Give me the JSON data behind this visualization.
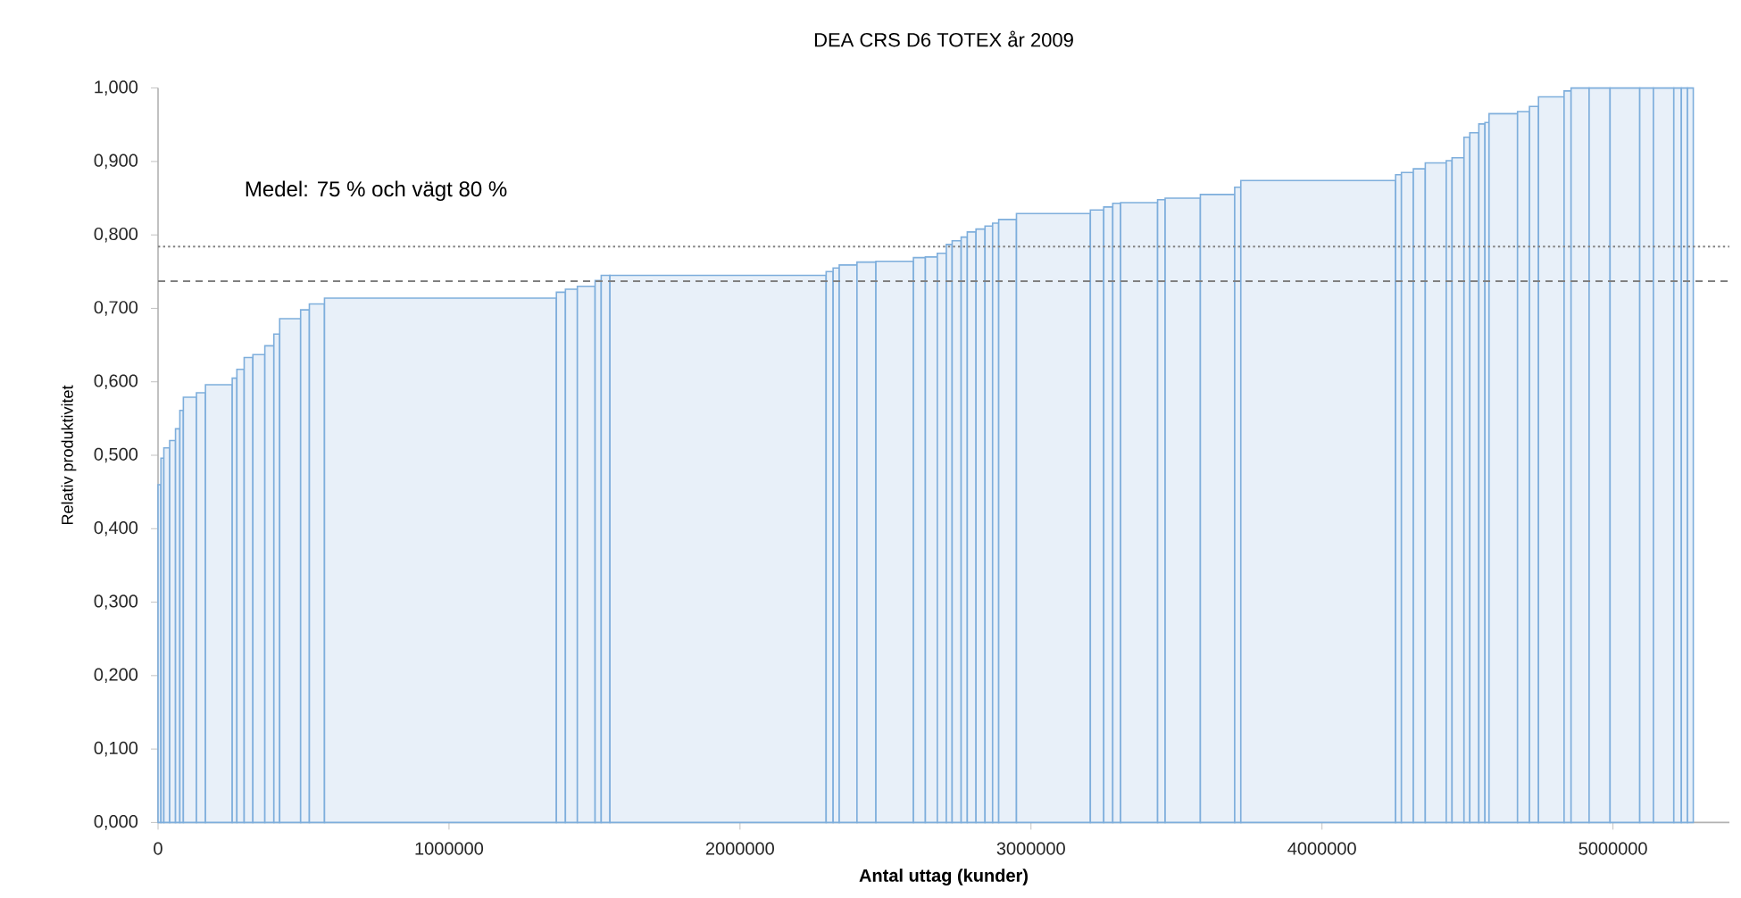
{
  "chart_data": {
    "type": "histogram",
    "title": "DEA CRS D6 TOTEX år 2009",
    "xlabel": "Antal uttag (kunder)",
    "ylabel": "Relativ produktivitet",
    "annotations": [
      "Medel: 75 % och vägt 80 %"
    ],
    "bins": [
      0,
      10000,
      20000,
      40000,
      60000,
      75000,
      87000,
      132000,
      163000,
      255000,
      271000,
      296000,
      326000,
      367000,
      398000,
      418000,
      490000,
      520000,
      572000,
      1369000,
      1400000,
      1441000,
      1502000,
      1523000,
      1553000,
      2296000,
      2320000,
      2341000,
      2402000,
      2467000,
      2596000,
      2637000,
      2678000,
      2709000,
      2729000,
      2760000,
      2781000,
      2811000,
      2842000,
      2868000,
      2889000,
      2950000,
      3204000,
      3250000,
      3281000,
      3308000,
      3435000,
      3461000,
      3582000,
      3700000,
      3721000,
      4253000,
      4273000,
      4314000,
      4355000,
      4427000,
      4447000,
      4488000,
      4508000,
      4539000,
      4560000,
      4574000,
      4672000,
      4713000,
      4744000,
      4832000,
      4856000,
      4918000,
      4990000,
      5092000,
      5139000,
      5209000,
      5235000,
      5256000,
      5276000
    ],
    "values": [
      0.46,
      0.496,
      0.51,
      0.52,
      0.536,
      0.561,
      0.579,
      0.585,
      0.596,
      0.605,
      0.617,
      0.633,
      0.637,
      0.649,
      0.665,
      0.686,
      0.698,
      0.706,
      0.714,
      0.722,
      0.726,
      0.73,
      0.738,
      0.745,
      0.745,
      0.75,
      0.755,
      0.759,
      0.763,
      0.764,
      0.769,
      0.77,
      0.775,
      0.787,
      0.792,
      0.797,
      0.804,
      0.808,
      0.812,
      0.816,
      0.821,
      0.829,
      0.834,
      0.838,
      0.843,
      0.844,
      0.848,
      0.85,
      0.855,
      0.865,
      0.874,
      0.882,
      0.885,
      0.89,
      0.898,
      0.901,
      0.905,
      0.933,
      0.939,
      0.951,
      0.953,
      0.965,
      0.968,
      0.975,
      0.988,
      0.996,
      1.0,
      1.0,
      1.0,
      1.0,
      1.0,
      1.0,
      1.0,
      1.0
    ],
    "color": "#7eaedc",
    "xlim": [
      0,
      5400000
    ],
    "xticks": [
      0,
      1000000,
      2000000,
      3000000,
      4000000,
      5000000
    ],
    "ylim": [
      0,
      1
    ],
    "yticks": [
      {
        "value": 0,
        "label": "0,000"
      },
      {
        "value": 0.1,
        "label": "0,100"
      },
      {
        "value": 0.2,
        "label": "0,200"
      },
      {
        "value": 0.3,
        "label": "0,300"
      },
      {
        "value": 0.4,
        "label": "0,400"
      },
      {
        "value": 0.5,
        "label": "0,500"
      },
      {
        "value": 0.6,
        "label": "0,600"
      },
      {
        "value": 0.7,
        "label": "0,700"
      },
      {
        "value": 0.8,
        "label": "0,800"
      },
      {
        "value": 0.9,
        "label": "0,900"
      },
      {
        "value": 1,
        "label": "1,000"
      }
    ],
    "ref_lines": [
      {
        "axis": "y",
        "value": 0.784,
        "color": "#808080",
        "line_style": "dotted"
      },
      {
        "axis": "y",
        "value": 0.737,
        "color": "#808080",
        "line_style": "dashed"
      }
    ],
    "grid": false
  }
}
